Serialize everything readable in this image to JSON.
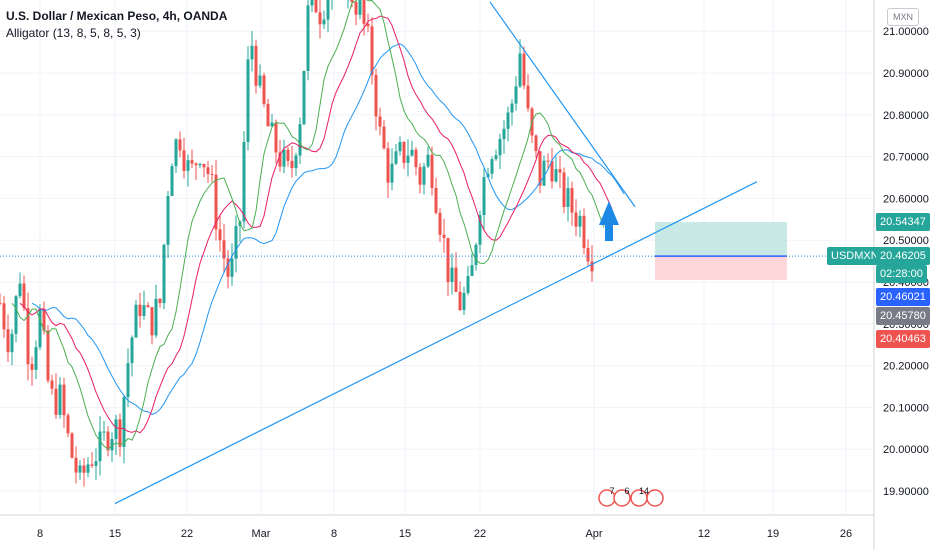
{
  "header": {
    "title": "U.S. Dollar / Mexican Peso, 4h, OANDA",
    "indicator": "Alligator (13, 8, 5, 8, 5, 3)",
    "currency_button": "MXN"
  },
  "price_labels": {
    "symbol": "USDMXN",
    "current": "20.46205",
    "countdown": "02:28:00",
    "target": "20.54347",
    "level_a": "20.46021",
    "level_b": "20.45780",
    "stop": "20.40463"
  },
  "events": {
    "badges": [
      "7",
      "6",
      "14"
    ]
  },
  "colors": {
    "up": "#26a69a",
    "down": "#ef5350",
    "jaw": "#2196f3",
    "teeth": "#e91e63",
    "lips": "#4caf50",
    "trendline": "#2196f3",
    "profit_zone": "#b2dfdb",
    "loss_zone": "#ffcdd2"
  },
  "chart_data": {
    "type": "candlestick",
    "title": "U.S. Dollar / Mexican Peso, 4h, OANDA",
    "ylim": [
      19.85,
      21.05
    ],
    "y_ticks": [
      19.9,
      20.0,
      20.1,
      20.2,
      20.3,
      20.4,
      20.5,
      20.6,
      20.7,
      20.8,
      20.9,
      21.0
    ],
    "y_tick_labels": [
      "19.90000",
      "20.00000",
      "20.10000",
      "20.20000",
      "20.30000",
      "20.40000",
      "20.50000",
      "20.60000",
      "20.70000",
      "20.80000",
      "20.90000",
      "21.00000"
    ],
    "x_ticks": [
      "8",
      "15",
      "22",
      "Mar",
      "8",
      "15",
      "22",
      "Apr",
      "12",
      "19",
      "26"
    ],
    "close_anchors": [
      [
        0,
        20.35
      ],
      [
        10,
        20.25
      ],
      [
        20,
        20.42
      ],
      [
        30,
        20.2
      ],
      [
        40,
        20.32
      ],
      [
        50,
        20.12
      ],
      [
        60,
        20.12
      ],
      [
        70,
        20.0
      ],
      [
        80,
        19.92
      ],
      [
        90,
        19.98
      ],
      [
        100,
        20.0
      ],
      [
        110,
        20.05
      ],
      [
        120,
        20.05
      ],
      [
        130,
        20.25
      ],
      [
        140,
        20.35
      ],
      [
        150,
        20.3
      ],
      [
        160,
        20.35
      ],
      [
        170,
        20.7
      ],
      [
        180,
        20.75
      ],
      [
        190,
        20.65
      ],
      [
        200,
        20.72
      ],
      [
        210,
        20.65
      ],
      [
        220,
        20.5
      ],
      [
        230,
        20.4
      ],
      [
        240,
        20.55
      ],
      [
        250,
        21.0
      ],
      [
        260,
        20.85
      ],
      [
        270,
        20.75
      ],
      [
        280,
        20.7
      ],
      [
        290,
        20.65
      ],
      [
        300,
        20.8
      ],
      [
        310,
        21.1
      ],
      [
        320,
        21.05
      ],
      [
        330,
        21.1
      ],
      [
        340,
        21.15
      ],
      [
        350,
        21.1
      ],
      [
        360,
        21.05
      ],
      [
        370,
        20.95
      ],
      [
        380,
        20.75
      ],
      [
        390,
        20.65
      ],
      [
        400,
        20.7
      ],
      [
        410,
        20.72
      ],
      [
        420,
        20.65
      ],
      [
        430,
        20.7
      ],
      [
        440,
        20.55
      ],
      [
        450,
        20.4
      ],
      [
        460,
        20.35
      ],
      [
        470,
        20.38
      ],
      [
        480,
        20.6
      ],
      [
        490,
        20.72
      ],
      [
        500,
        20.75
      ],
      [
        510,
        20.8
      ],
      [
        520,
        20.95
      ],
      [
        530,
        20.75
      ],
      [
        540,
        20.65
      ],
      [
        550,
        20.7
      ],
      [
        560,
        20.62
      ],
      [
        570,
        20.58
      ],
      [
        580,
        20.55
      ],
      [
        590,
        20.47
      ]
    ],
    "current_price": 20.46205,
    "trendlines": [
      {
        "name": "support",
        "points": [
          [
            115,
            19.87
          ],
          [
            757,
            20.64
          ]
        ]
      },
      {
        "name": "resistance",
        "points": [
          [
            490,
            21.07
          ],
          [
            635,
            20.58
          ]
        ]
      }
    ],
    "position": {
      "entry": 20.46205,
      "target": 20.54347,
      "stop": 20.40463,
      "from_x": 655,
      "to_x": 787
    },
    "alligator": {
      "jaw": [
        13,
        8
      ],
      "teeth": [
        8,
        5
      ],
      "lips": [
        5,
        3
      ]
    }
  }
}
